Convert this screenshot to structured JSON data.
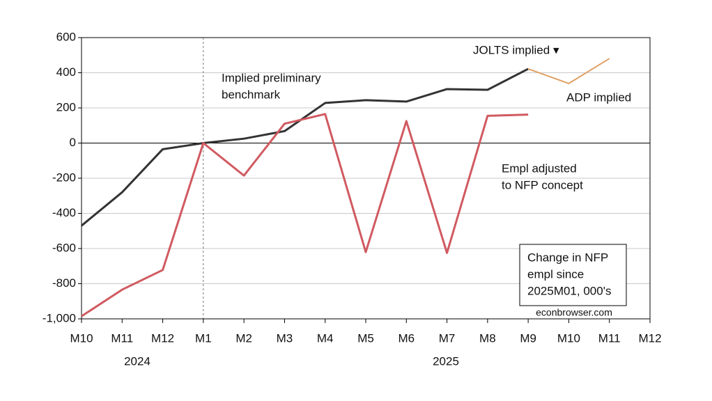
{
  "chart_data": {
    "type": "line",
    "categories": [
      "M10",
      "M11",
      "M12",
      "M1",
      "M2",
      "M3",
      "M4",
      "M5",
      "M6",
      "M7",
      "M8",
      "M9",
      "M10",
      "M11",
      "M12"
    ],
    "years": [
      "2024",
      "2025"
    ],
    "series": [
      {
        "color": "#333333",
        "values": [
          -470,
          -280,
          -35,
          0,
          25,
          68,
          228,
          244,
          236,
          307,
          303,
          422,
          null,
          null,
          null
        ]
      },
      {
        "color": "#e0a064",
        "values": [
          null,
          null,
          null,
          null,
          null,
          null,
          null,
          null,
          null,
          null,
          null,
          422,
          339,
          481,
          null
        ]
      },
      {
        "color": "#d05a60",
        "values": [
          -985,
          -834,
          -722,
          0,
          -185,
          110,
          165,
          -620,
          125,
          -625,
          155,
          162,
          null,
          null,
          null
        ]
      }
    ],
    "ylim": [
      -1000,
      600
    ],
    "yticks": [
      {
        "value": -1000,
        "label": "-1,000"
      },
      -800,
      -600,
      -400,
      -200,
      0,
      200,
      400,
      600
    ],
    "grid": true,
    "hline": 0,
    "vline": 3,
    "annotations": [
      {
        "lines": [
          "Implied preliminary",
          "benchmark"
        ],
        "color": "#111111"
      },
      {
        "lines": [
          "JOLTS implied ▾"
        ],
        "color": "#2a8a2a"
      },
      {
        "lines": [
          "ADP implied"
        ],
        "color": "#d9954a"
      },
      {
        "lines": [
          "Empl adjusted",
          "to NFP concept"
        ],
        "color": "#cc2020"
      }
    ],
    "note_box": [
      "Change in NFP",
      "empl since",
      "2025M01, 000's"
    ],
    "source": "econbrowser.com"
  }
}
